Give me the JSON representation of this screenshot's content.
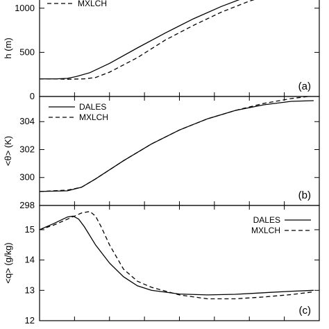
{
  "chart_data": [
    {
      "type": "line",
      "panel_label": "(a)",
      "ylabel": "h (m)",
      "ylim": [
        0,
        1250
      ],
      "xlim": [
        0,
        1
      ],
      "yticks": [
        0,
        500,
        1000
      ],
      "series": [
        {
          "name": "DALES",
          "style": "solid",
          "x": [
            0.0,
            0.06,
            0.1,
            0.13,
            0.18,
            0.25,
            0.35,
            0.45,
            0.55,
            0.65,
            0.75,
            0.85,
            0.9
          ],
          "y": [
            200,
            200,
            205,
            225,
            270,
            375,
            550,
            720,
            880,
            1020,
            1140,
            1235,
            1275
          ]
        },
        {
          "name": "MXLCH",
          "style": "dashed",
          "x": [
            0.0,
            0.06,
            0.1,
            0.16,
            0.2,
            0.25,
            0.35,
            0.45,
            0.55,
            0.65,
            0.75,
            0.85,
            0.92
          ],
          "y": [
            200,
            200,
            195,
            200,
            215,
            275,
            440,
            640,
            805,
            955,
            1080,
            1175,
            1240
          ]
        }
      ],
      "legend": {
        "position": "top-left",
        "entries": [
          "MXLCH"
        ]
      }
    },
    {
      "type": "line",
      "panel_label": "(b)",
      "ylabel": "<θ> (K)",
      "ylim": [
        298,
        305.8
      ],
      "xlim": [
        0,
        1
      ],
      "yticks": [
        298,
        300,
        302,
        304
      ],
      "series": [
        {
          "name": "DALES",
          "style": "solid",
          "x": [
            0.0,
            0.1,
            0.15,
            0.2,
            0.3,
            0.4,
            0.5,
            0.6,
            0.7,
            0.8,
            0.9,
            0.98
          ],
          "y": [
            299.0,
            299.05,
            299.3,
            299.9,
            301.2,
            302.4,
            303.4,
            304.2,
            304.8,
            305.2,
            305.45,
            305.5
          ]
        },
        {
          "name": "MXLCH",
          "style": "dashed",
          "x": [
            0.0,
            0.1,
            0.15,
            0.2,
            0.3,
            0.4,
            0.5,
            0.6,
            0.7,
            0.8,
            0.9,
            0.98
          ],
          "y": [
            299.0,
            299.1,
            299.3,
            299.9,
            301.2,
            302.4,
            303.4,
            304.2,
            304.8,
            305.3,
            305.65,
            305.85
          ]
        }
      ],
      "legend": {
        "position": "top-left",
        "entries": [
          "DALES",
          "MXLCH"
        ]
      }
    },
    {
      "type": "line",
      "panel_label": "(c)",
      "ylabel": "<q> (g/kg)",
      "ylim": [
        12,
        15.8
      ],
      "xlim": [
        0,
        1
      ],
      "yticks": [
        12,
        13,
        14,
        15
      ],
      "series": [
        {
          "name": "DALES",
          "style": "solid",
          "x": [
            0.0,
            0.05,
            0.1,
            0.12,
            0.14,
            0.16,
            0.2,
            0.25,
            0.3,
            0.35,
            0.4,
            0.5,
            0.6,
            0.7,
            0.8,
            0.9,
            0.98
          ],
          "y": [
            15.0,
            15.2,
            15.42,
            15.45,
            15.35,
            15.1,
            14.5,
            13.9,
            13.45,
            13.15,
            13.0,
            12.88,
            12.85,
            12.87,
            12.92,
            12.97,
            13.0
          ]
        },
        {
          "name": "MXLCH",
          "style": "dashed",
          "x": [
            0.0,
            0.05,
            0.1,
            0.15,
            0.18,
            0.2,
            0.22,
            0.25,
            0.3,
            0.35,
            0.4,
            0.5,
            0.6,
            0.7,
            0.8,
            0.9,
            0.98
          ],
          "y": [
            15.0,
            15.15,
            15.35,
            15.55,
            15.6,
            15.45,
            15.1,
            14.5,
            13.7,
            13.3,
            13.1,
            12.85,
            12.72,
            12.72,
            12.78,
            12.86,
            12.95
          ]
        }
      ],
      "legend": {
        "position": "top-right",
        "entries": [
          "DALES",
          "MXLCH"
        ]
      }
    }
  ]
}
